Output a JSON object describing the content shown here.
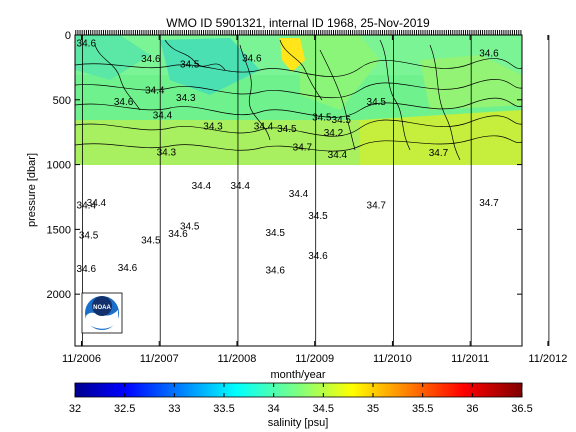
{
  "chart_data": {
    "type": "heatmap",
    "title": "WMO ID 5901321, internal ID 1968, 25-Nov-2019",
    "xlabel": "month/year",
    "ylabel": "pressure [dbar]",
    "x_ticks": [
      "11/2006",
      "11/2007",
      "11/2008",
      "11/2009",
      "11/2010",
      "11/2011",
      "11/2012"
    ],
    "y_ticks": [
      0,
      500,
      1000,
      1500,
      2000
    ],
    "ylim": [
      0,
      2400
    ],
    "xlim": [
      2006.75,
      2012.5
    ],
    "y_reversed": true,
    "profile_depth_limit": 1000,
    "colorbar": {
      "label": "salinity [psu]",
      "ticks": [
        "32",
        "32.5",
        "33",
        "33.5",
        "34",
        "34.5",
        "35",
        "35.5",
        "36",
        "36.5"
      ],
      "range": [
        32,
        36.5
      ],
      "colormap": "jet"
    },
    "contour_labels": [
      {
        "x": 2006.77,
        "y": 90,
        "text": "34.6"
      },
      {
        "x": 2007.25,
        "y": 540,
        "text": "34.6"
      },
      {
        "x": 2007.6,
        "y": 210,
        "text": "34.6"
      },
      {
        "x": 2007.65,
        "y": 450,
        "text": "34.4"
      },
      {
        "x": 2007.75,
        "y": 645,
        "text": "34.4"
      },
      {
        "x": 2007.8,
        "y": 930,
        "text": "34.3"
      },
      {
        "x": 2008.1,
        "y": 250,
        "text": "34.5"
      },
      {
        "x": 2008.05,
        "y": 510,
        "text": "34.3"
      },
      {
        "x": 2008.4,
        "y": 730,
        "text": "34.3"
      },
      {
        "x": 2008.9,
        "y": 205,
        "text": "34.6"
      },
      {
        "x": 2009.05,
        "y": 730,
        "text": "34.4"
      },
      {
        "x": 2009.35,
        "y": 750,
        "text": "34.5"
      },
      {
        "x": 2009.55,
        "y": 890,
        "text": "34.7"
      },
      {
        "x": 2009.8,
        "y": 660,
        "text": "34.5"
      },
      {
        "x": 2009.95,
        "y": 780,
        "text": "34.2"
      },
      {
        "x": 2010.05,
        "y": 680,
        "text": "34.5"
      },
      {
        "x": 2010.0,
        "y": 950,
        "text": "34.4"
      },
      {
        "x": 2010.5,
        "y": 540,
        "text": "34.5"
      },
      {
        "x": 2011.3,
        "y": 935,
        "text": "34.7"
      },
      {
        "x": 2011.95,
        "y": 165,
        "text": "34.6"
      },
      {
        "x": 2006.77,
        "y": 1340,
        "text": "34.4"
      },
      {
        "x": 2006.9,
        "y": 1320,
        "text": "34.4"
      },
      {
        "x": 2006.8,
        "y": 1570,
        "text": "34.5"
      },
      {
        "x": 2006.77,
        "y": 1830,
        "text": "34.6"
      },
      {
        "x": 2007.3,
        "y": 1820,
        "text": "34.6"
      },
      {
        "x": 2007.6,
        "y": 1610,
        "text": "34.5"
      },
      {
        "x": 2008.25,
        "y": 1190,
        "text": "34.4"
      },
      {
        "x": 2008.1,
        "y": 1500,
        "text": "34.5"
      },
      {
        "x": 2007.95,
        "y": 1560,
        "text": "34.6"
      },
      {
        "x": 2008.75,
        "y": 1190,
        "text": "34.4"
      },
      {
        "x": 2009.2,
        "y": 1550,
        "text": "34.5"
      },
      {
        "x": 2009.2,
        "y": 1840,
        "text": "34.6"
      },
      {
        "x": 2009.5,
        "y": 1250,
        "text": "34.4"
      },
      {
        "x": 2009.75,
        "y": 1420,
        "text": "34.5"
      },
      {
        "x": 2009.75,
        "y": 1730,
        "text": "34.6"
      },
      {
        "x": 2010.5,
        "y": 1340,
        "text": "34.7"
      },
      {
        "x": 2011.95,
        "y": 1320,
        "text": "34.7"
      }
    ]
  },
  "logo": {
    "text": "NOAA"
  },
  "colors": {
    "axis": "#000000",
    "background": "#ffffff",
    "contour": "#000000"
  }
}
